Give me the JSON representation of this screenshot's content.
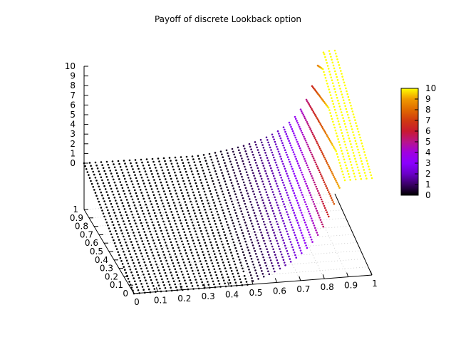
{
  "chart_data": {
    "type": "scatter",
    "title": "Payoff of discrete Lookback option",
    "xlabel": "",
    "ylabel": "",
    "zlabel": "",
    "xlim": [
      0,
      1
    ],
    "ylim": [
      0,
      1
    ],
    "zlim": [
      0,
      10
    ],
    "x_ticks": [
      "0",
      "0.1",
      "0.2",
      "0.3",
      "0.4",
      "0.5",
      "0.6",
      "0.7",
      "0.8",
      "0.9",
      "1"
    ],
    "y_ticks": [
      "0",
      "0.1",
      "0.2",
      "0.3",
      "0.4",
      "0.5",
      "0.6",
      "0.7",
      "0.8",
      "0.9",
      "1"
    ],
    "z_ticks": [
      "0",
      "1",
      "2",
      "3",
      "4",
      "5",
      "6",
      "7",
      "8",
      "9",
      "10"
    ],
    "colorbar": {
      "range": [
        0,
        10
      ],
      "ticks": [
        "0",
        "1",
        "2",
        "3",
        "4",
        "5",
        "6",
        "7",
        "8",
        "9",
        "10"
      ],
      "palette": [
        "#000000",
        "#3a0066",
        "#6a00c8",
        "#8a00ff",
        "#a000e0",
        "#b8148a",
        "#c81a30",
        "#d03a10",
        "#e06a00",
        "#f09a00",
        "#ffff00"
      ]
    },
    "grid": true,
    "surface": {
      "description_rows": 20,
      "row_peak_values": [
        0.3,
        0.8,
        1.3,
        1.8,
        2.2,
        2.6,
        3.0,
        3.4,
        3.8,
        4.2,
        4.6,
        5.0,
        5.4,
        5.8,
        6.2,
        6.6,
        7.0,
        7.6,
        8.2,
        10.0
      ]
    }
  }
}
